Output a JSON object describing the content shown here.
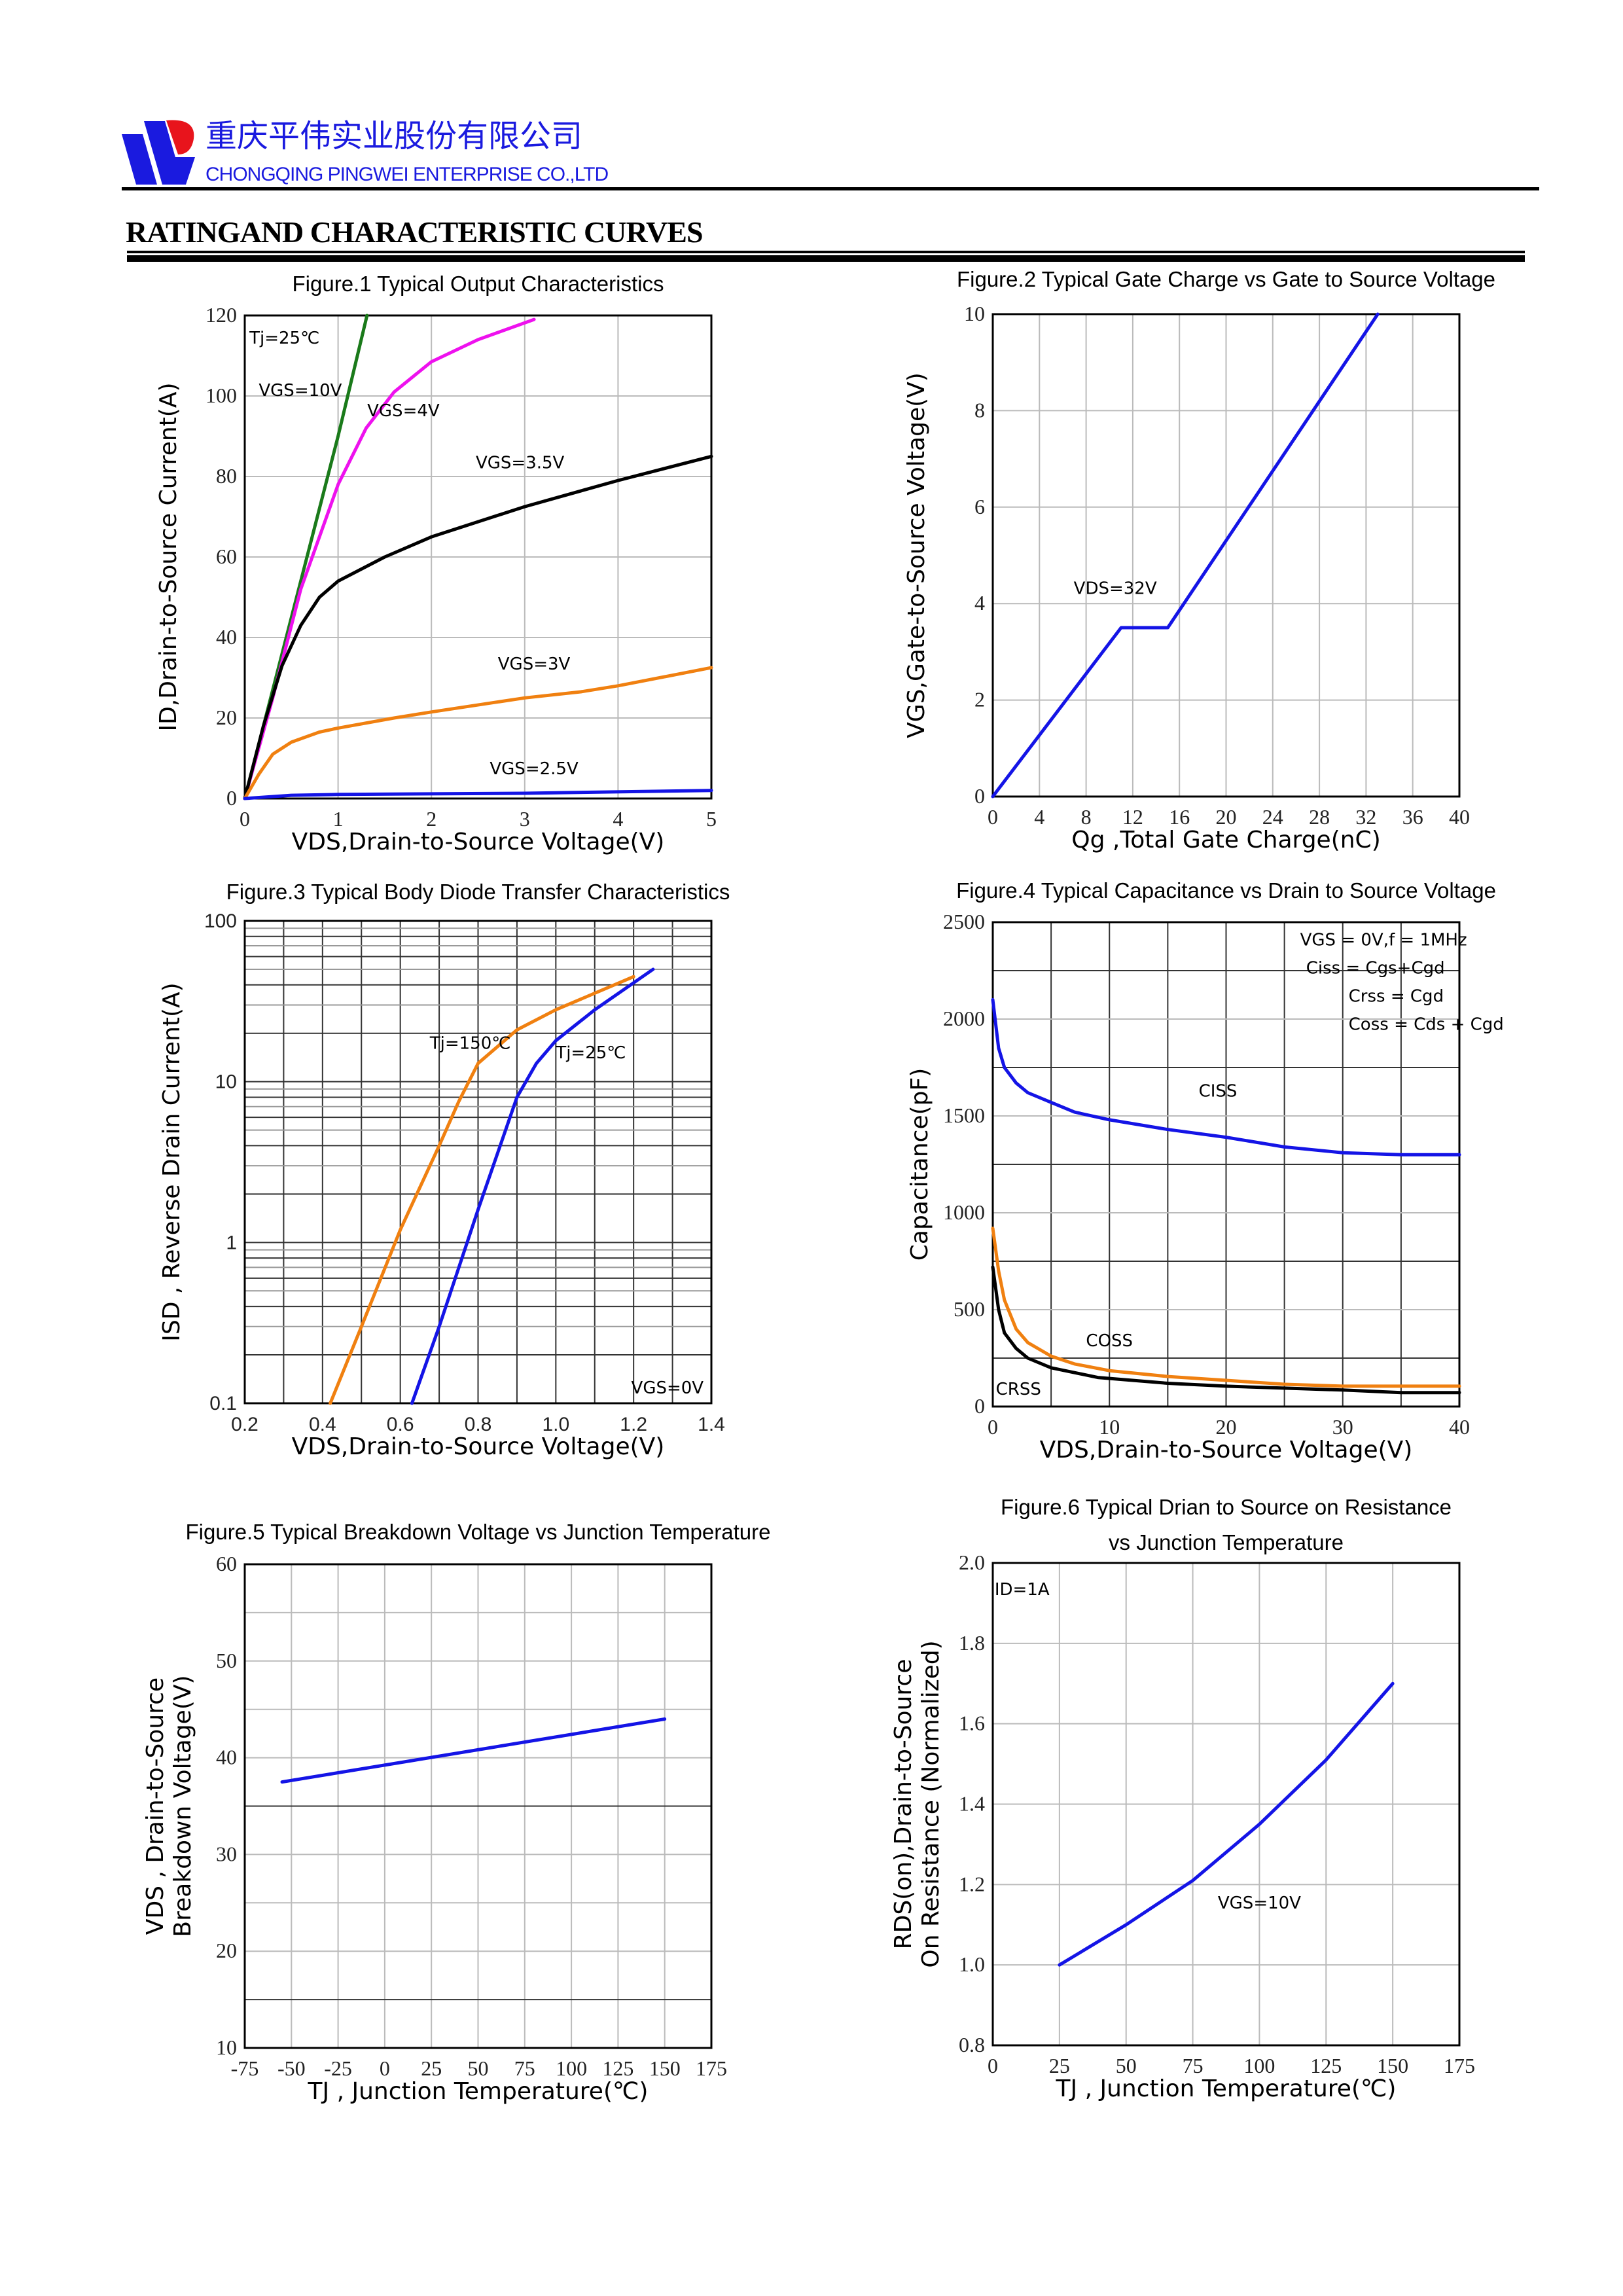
{
  "header": {
    "company_cn": "重庆平伟实业股份有限公司",
    "company_en": "CHONGQING PINGWEI ENTERPRISE CO.,LTD",
    "logo_colors": {
      "blue": "#1a1adf",
      "red": "#e8141c"
    },
    "section_title": "RATINGAND CHARACTERISTIC CURVES"
  },
  "chart_data": [
    {
      "type": "line",
      "title": [
        "Figure.1 Typical Output Characteristics"
      ],
      "xlabel": "VDS,Drain-to-Source Voltage(V)",
      "ylabel": [
        "ID,Drain-to-Source Current(A)"
      ],
      "xlim": [
        0,
        5
      ],
      "ylim": [
        0,
        120
      ],
      "xticks": [
        0,
        1,
        2,
        3,
        4,
        5
      ],
      "yticks": [
        0,
        20,
        40,
        60,
        80,
        100,
        120
      ],
      "grid": true,
      "annotations": [
        "Tj=25℃",
        "VGS=10V",
        "VGS=4V",
        "VGS=3.5V",
        "VGS=3V",
        "VGS=2.5V"
      ],
      "series": [
        {
          "name": "VGS=10V",
          "color": "#1a7a1a",
          "points": [
            [
              0,
              0
            ],
            [
              0.5,
              45
            ],
            [
              1,
              90
            ],
            [
              1.31,
              120
            ]
          ]
        },
        {
          "name": "VGS=4V",
          "color": "#ee11ee",
          "points": [
            [
              0,
              0
            ],
            [
              0.3,
              25
            ],
            [
              0.6,
              52
            ],
            [
              1,
              78
            ],
            [
              1.3,
              92
            ],
            [
              1.6,
              101
            ],
            [
              2,
              108.5
            ],
            [
              2.5,
              114
            ],
            [
              3.1,
              119
            ]
          ]
        },
        {
          "name": "VGS=3.5V",
          "color": "#000000",
          "points": [
            [
              0,
              0
            ],
            [
              0.2,
              18
            ],
            [
              0.4,
              33
            ],
            [
              0.6,
              43
            ],
            [
              0.8,
              50
            ],
            [
              1,
              54
            ],
            [
              1.5,
              60
            ],
            [
              2,
              65
            ],
            [
              3,
              72.5
            ],
            [
              4,
              79
            ],
            [
              5,
              85
            ]
          ]
        },
        {
          "name": "VGS=3V",
          "color": "#f08010",
          "points": [
            [
              0,
              0
            ],
            [
              0.15,
              6
            ],
            [
              0.3,
              11
            ],
            [
              0.5,
              14
            ],
            [
              0.8,
              16.5
            ],
            [
              1,
              17.5
            ],
            [
              1.6,
              20
            ],
            [
              2,
              21.5
            ],
            [
              3,
              25
            ],
            [
              3.6,
              26.5
            ],
            [
              4,
              28
            ],
            [
              5,
              32.5
            ]
          ]
        },
        {
          "name": "VGS=2.5V",
          "color": "#1414e6",
          "points": [
            [
              0,
              0
            ],
            [
              0.5,
              0.8
            ],
            [
              1,
              1
            ],
            [
              3,
              1.3
            ],
            [
              5,
              2
            ]
          ]
        }
      ]
    },
    {
      "type": "line",
      "title": [
        "Figure.2 Typical Gate Charge vs Gate to Source Voltage"
      ],
      "xlabel": "Qg ,Total Gate Charge(nC)",
      "ylabel": [
        "VGS,Gate-to-Source Voltage(V)"
      ],
      "xlim": [
        0,
        40
      ],
      "ylim": [
        0,
        10
      ],
      "xticks": [
        0,
        4,
        8,
        12,
        16,
        20,
        24,
        28,
        32,
        36,
        40
      ],
      "yticks": [
        0,
        2,
        4,
        6,
        8,
        10
      ],
      "grid": true,
      "annotations": [
        "VDS=32V"
      ],
      "series": [
        {
          "name": "VDS=32V",
          "color": "#1414e6",
          "points": [
            [
              0,
              0
            ],
            [
              11,
              3.5
            ],
            [
              15,
              3.5
            ],
            [
              33,
              10
            ]
          ]
        }
      ]
    },
    {
      "type": "line",
      "title": [
        "Figure.3 Typical Body Diode Transfer Characteristics"
      ],
      "xlabel": "VDS,Drain-to-Source Voltage(V)",
      "ylabel": [
        "ISD , Reverse Drain Current(A)"
      ],
      "xlim": [
        0.2,
        1.4
      ],
      "ylim": [
        0.1,
        100
      ],
      "yscale": "log",
      "xticks": [
        "0.2",
        "0.4",
        "0.6",
        "0.8",
        "1.0",
        "1.2",
        "1.4"
      ],
      "yticks": [
        "0.1",
        "1",
        "10",
        "100"
      ],
      "grid": true,
      "annotations": [
        "Tj=150℃",
        "Tj=25℃",
        "VGS=0V"
      ],
      "series": [
        {
          "name": "Tj=150℃",
          "color": "#f08010",
          "points": [
            [
              0.42,
              0.1
            ],
            [
              0.5,
              0.3
            ],
            [
              0.6,
              1.2
            ],
            [
              0.7,
              4
            ],
            [
              0.75,
              7.5
            ],
            [
              0.8,
              13
            ],
            [
              0.9,
              21
            ],
            [
              1.0,
              28
            ],
            [
              1.2,
              45
            ]
          ]
        },
        {
          "name": "Tj=25℃",
          "color": "#1414e6",
          "points": [
            [
              0.63,
              0.1
            ],
            [
              0.7,
              0.3
            ],
            [
              0.8,
              1.6
            ],
            [
              0.9,
              8
            ],
            [
              0.95,
              13
            ],
            [
              1.0,
              18
            ],
            [
              1.1,
              28
            ],
            [
              1.25,
              50
            ]
          ]
        }
      ]
    },
    {
      "type": "line",
      "title": [
        "Figure.4 Typical Capacitance vs Drain to Source Voltage"
      ],
      "xlabel": "VDS,Drain-to-Source Voltage(V)",
      "ylabel": [
        "Capacitance(pF)"
      ],
      "xlim": [
        0,
        40
      ],
      "ylim": [
        0,
        2500
      ],
      "xticks": [
        0,
        10,
        20,
        30,
        40
      ],
      "yticks": [
        0,
        500,
        1000,
        1500,
        2000,
        2500
      ],
      "grid": true,
      "annotations": [
        "VGS  = 0V,f = 1MHz",
        "Ciss = Cgs+Cgd",
        "Crss = Cgd",
        "Coss = Cds + Cgd",
        "CISS",
        "COSS",
        "CRSS"
      ],
      "series": [
        {
          "name": "CISS",
          "color": "#1414e6",
          "points": [
            [
              0,
              2100
            ],
            [
              0.5,
              1850
            ],
            [
              1,
              1750
            ],
            [
              2,
              1670
            ],
            [
              3,
              1620
            ],
            [
              5,
              1570
            ],
            [
              7,
              1520
            ],
            [
              10,
              1480
            ],
            [
              15,
              1430
            ],
            [
              20,
              1390
            ],
            [
              25,
              1340
            ],
            [
              30,
              1310
            ],
            [
              35,
              1300
            ],
            [
              40,
              1300
            ]
          ]
        },
        {
          "name": "COSS",
          "color": "#f08010",
          "points": [
            [
              0,
              920
            ],
            [
              0.5,
              700
            ],
            [
              1,
              550
            ],
            [
              2,
              400
            ],
            [
              3,
              330
            ],
            [
              5,
              260
            ],
            [
              7,
              220
            ],
            [
              10,
              185
            ],
            [
              15,
              155
            ],
            [
              20,
              135
            ],
            [
              25,
              115
            ],
            [
              30,
              105
            ],
            [
              40,
              105
            ]
          ]
        },
        {
          "name": "CRSS",
          "color": "#000000",
          "points": [
            [
              0,
              720
            ],
            [
              0.5,
              500
            ],
            [
              1,
              380
            ],
            [
              2,
              300
            ],
            [
              3,
              250
            ],
            [
              5,
              200
            ],
            [
              7,
              175
            ],
            [
              9,
              150
            ],
            [
              15,
              120
            ],
            [
              20,
              105
            ],
            [
              25,
              95
            ],
            [
              30,
              85
            ],
            [
              35,
              72
            ],
            [
              40,
              72
            ]
          ]
        }
      ]
    },
    {
      "type": "line",
      "title": [
        "Figure.5 Typical Breakdown Voltage vs Junction Temperature"
      ],
      "xlabel": "TJ , Junction Temperature(℃)",
      "ylabel": [
        "VDS , Drain-to-Source",
        "Breakdown Voltage(V)"
      ],
      "xlim": [
        -75,
        175
      ],
      "ylim": [
        10,
        60
      ],
      "xticks": [
        -75,
        -50,
        -25,
        0,
        25,
        50,
        75,
        100,
        125,
        150,
        175
      ],
      "yticks": [
        10,
        20,
        30,
        40,
        50,
        60
      ],
      "grid": true,
      "annotations": [],
      "series": [
        {
          "color": "#1414e6",
          "points": [
            [
              -55,
              37.5
            ],
            [
              150,
              44
            ]
          ]
        }
      ]
    },
    {
      "type": "line",
      "title": [
        "Figure.6 Typical Drian to Source on Resistance",
        "vs Junction Temperature"
      ],
      "xlabel": "TJ , Junction Temperature(℃)",
      "ylabel": [
        "RDS(on),Drain-to-Source",
        "On Resistance (Normalized)"
      ],
      "xlim": [
        0,
        175
      ],
      "ylim": [
        0.8,
        2.0
      ],
      "xticks": [
        0,
        25,
        50,
        75,
        100,
        125,
        150,
        175
      ],
      "yticks": [
        "0.8",
        "1.0",
        "1.2",
        "1.4",
        "1.6",
        "1.8",
        "2.0"
      ],
      "grid": true,
      "annotations": [
        "ID=1A",
        "VGS=10V"
      ],
      "series": [
        {
          "name": "VGS=10V",
          "color": "#1414e6",
          "points": [
            [
              25,
              1.0
            ],
            [
              50,
              1.1
            ],
            [
              75,
              1.21
            ],
            [
              100,
              1.35
            ],
            [
              125,
              1.51
            ],
            [
              150,
              1.7
            ]
          ]
        }
      ]
    }
  ]
}
